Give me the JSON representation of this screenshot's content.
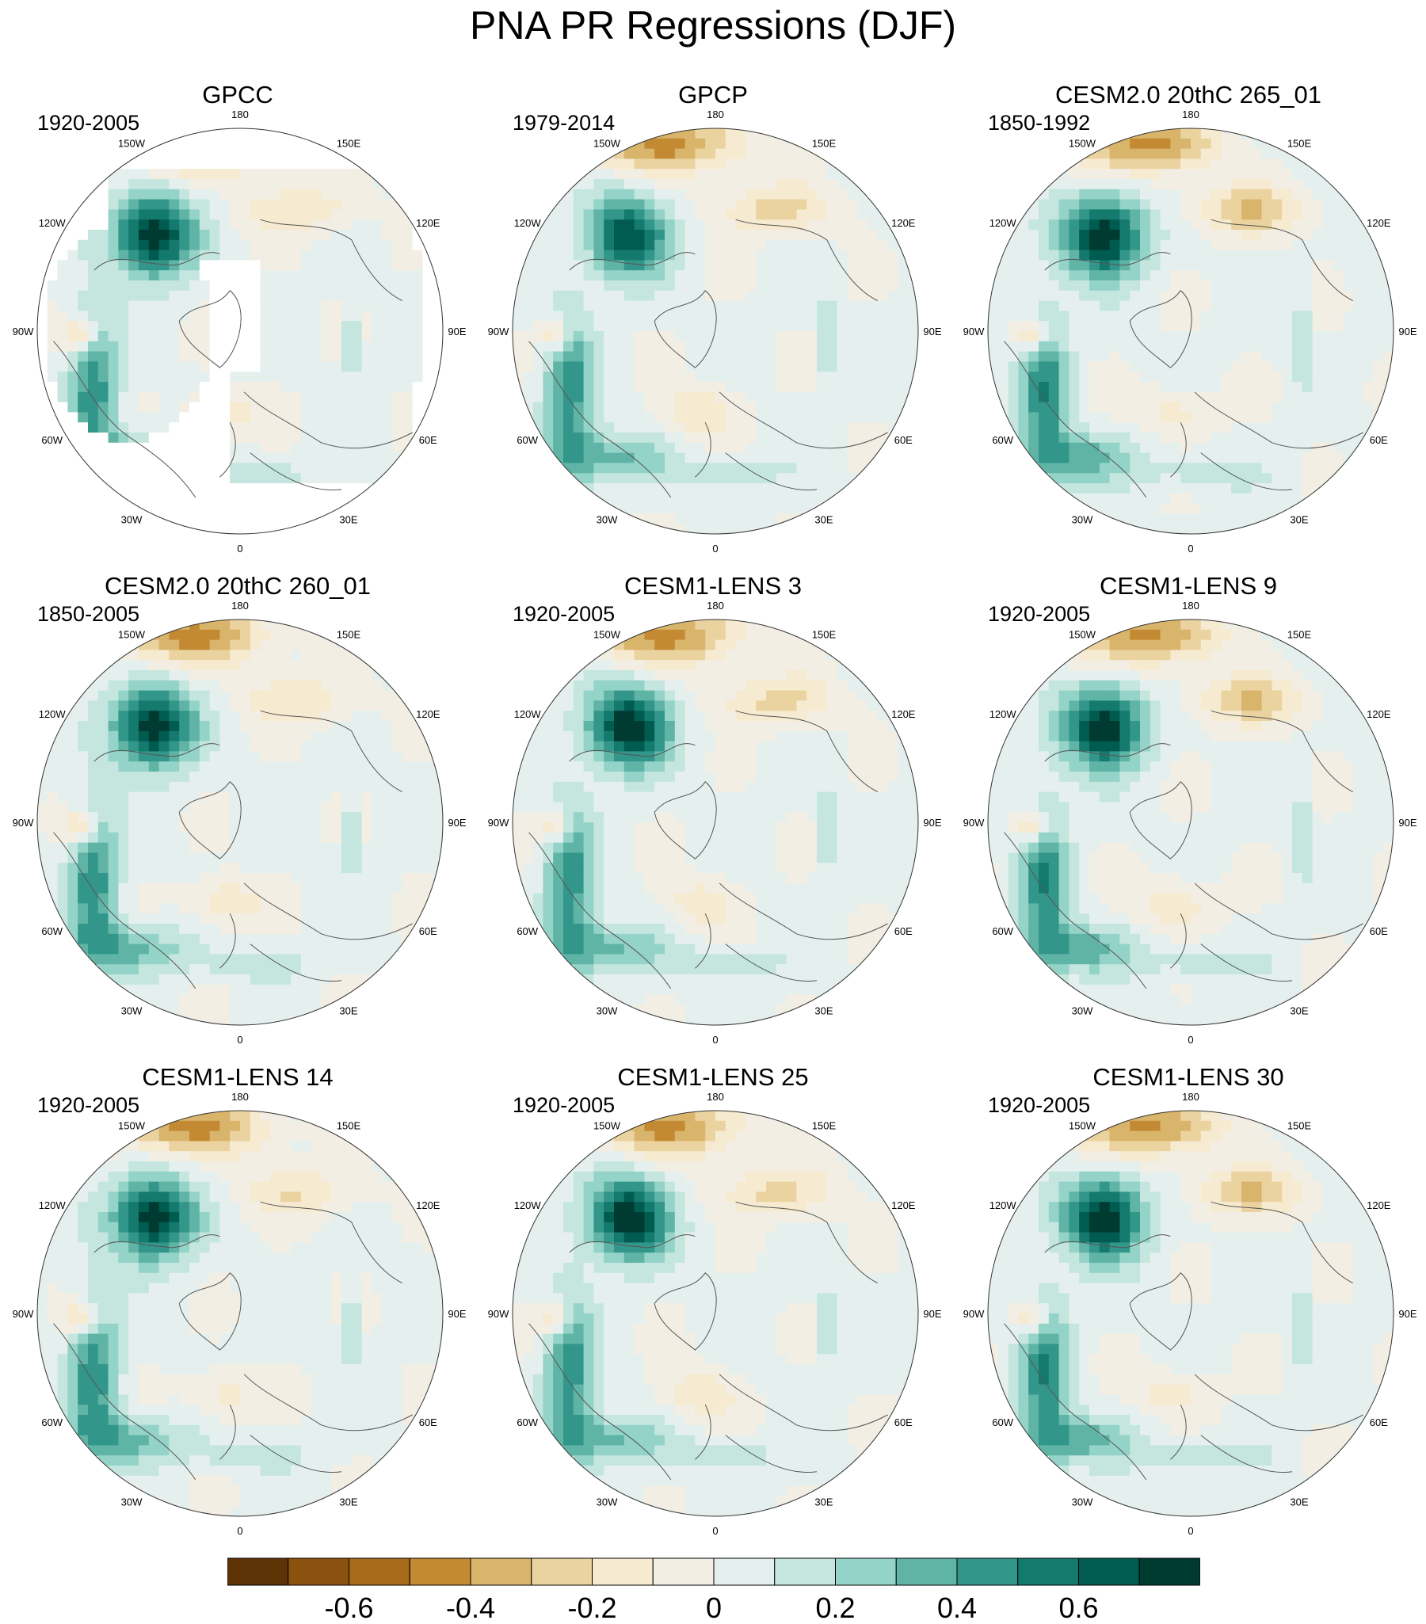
{
  "title": "PNA PR Regressions (DJF)",
  "longitude_labels": [
    "180",
    "150E",
    "120E",
    "90E",
    "60E",
    "30E",
    "0",
    "30W",
    "60W",
    "90W",
    "120W",
    "150W"
  ],
  "colors": {
    "bins": [
      "#5e3407",
      "#8b520f",
      "#a86a1b",
      "#c38a33",
      "#d9b46b",
      "#ebd3a0",
      "#f6ead0",
      "#f3eee3",
      "#e5f0ee",
      "#c4e6df",
      "#94d3c7",
      "#5fb4a6",
      "#33968a",
      "#157a6e",
      "#005b50",
      "#003b32"
    ],
    "mask": "#ffffff",
    "coast": "#555555",
    "border": "#333333"
  },
  "colorbar": {
    "levels": [
      -0.7,
      -0.6,
      -0.5,
      -0.4,
      -0.3,
      -0.2,
      -0.1,
      0,
      0.1,
      0.2,
      0.3,
      0.4,
      0.5,
      0.6,
      0.7
    ],
    "tick_labels": [
      "-0.6",
      "-0.4",
      "-0.2",
      "0",
      "0.2",
      "0.4",
      "0.6"
    ]
  },
  "panels": [
    {
      "id": "gpcc",
      "title": "GPCC",
      "period": "1920-2005",
      "masked_ocean": true,
      "variant": 0
    },
    {
      "id": "gpcp",
      "title": "GPCP",
      "period": "1979-2014",
      "masked_ocean": false,
      "variant": 1
    },
    {
      "id": "cesm2-265",
      "title": "CESM2.0 20thC 265_01",
      "period": "1850-1992",
      "masked_ocean": false,
      "variant": 2
    },
    {
      "id": "cesm2-260",
      "title": "CESM2.0 20thC 260_01",
      "period": "1850-2005",
      "masked_ocean": false,
      "variant": 3
    },
    {
      "id": "lens-3",
      "title": "CESM1-LENS 3",
      "period": "1920-2005",
      "masked_ocean": false,
      "variant": 4
    },
    {
      "id": "lens-9",
      "title": "CESM1-LENS 9",
      "period": "1920-2005",
      "masked_ocean": false,
      "variant": 5
    },
    {
      "id": "lens-14",
      "title": "CESM1-LENS 14",
      "period": "1920-2005",
      "masked_ocean": false,
      "variant": 6
    },
    {
      "id": "lens-25",
      "title": "CESM1-LENS 25",
      "period": "1920-2005",
      "masked_ocean": false,
      "variant": 7
    },
    {
      "id": "lens-30",
      "title": "CESM1-LENS 30",
      "period": "1920-2005",
      "masked_ocean": false,
      "variant": 8
    }
  ]
}
